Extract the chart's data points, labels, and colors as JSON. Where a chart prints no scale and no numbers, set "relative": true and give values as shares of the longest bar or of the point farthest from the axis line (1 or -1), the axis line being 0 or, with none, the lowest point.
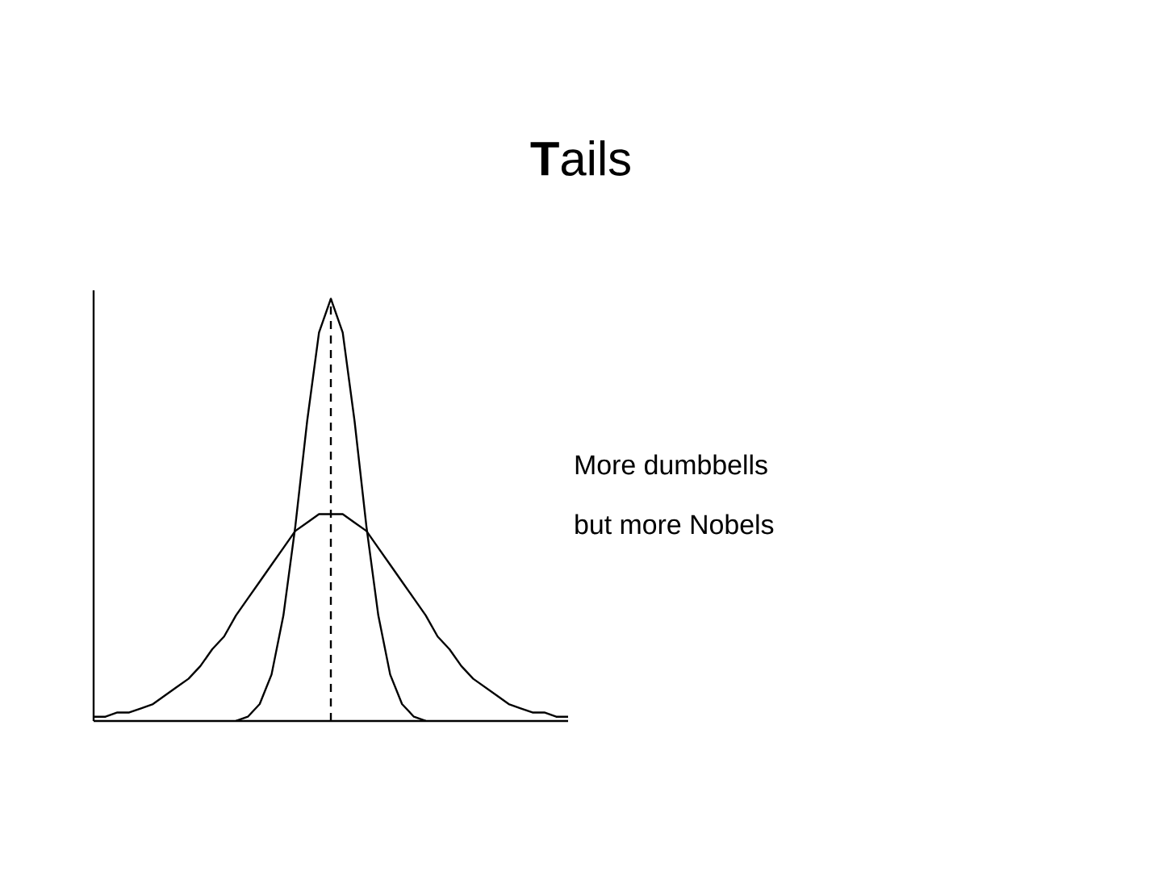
{
  "chart_data": {
    "type": "line",
    "title": "**T**ails",
    "relative": true,
    "categories": [
      null,
      null,
      null,
      null,
      null,
      null,
      null,
      null,
      null,
      null,
      null,
      null,
      null,
      null,
      null,
      null,
      null,
      null,
      null,
      null,
      null,
      null,
      null,
      null,
      null,
      null,
      null,
      null,
      null,
      null,
      null,
      null,
      null,
      null,
      null,
      null,
      null,
      null,
      null,
      null,
      null
    ],
    "series": [
      {
        "color": "#000000",
        "values": [
          0.01,
          0.01,
          0.02,
          0.02,
          0.03,
          0.04,
          0.06,
          0.08,
          0.1,
          0.13,
          0.17,
          0.2,
          0.25,
          0.29,
          0.33,
          0.37,
          0.41,
          0.45,
          0.47,
          0.49,
          0.49,
          0.49,
          0.47,
          0.45,
          0.41,
          0.37,
          0.33,
          0.29,
          0.25,
          0.2,
          0.17,
          0.13,
          0.1,
          0.08,
          0.06,
          0.04,
          0.03,
          0.02,
          0.02,
          0.01,
          0.01
        ]
      },
      {
        "color": "#000000",
        "values": [
          null,
          null,
          null,
          null,
          null,
          null,
          null,
          null,
          null,
          null,
          null,
          null,
          0.0,
          0.01,
          0.04,
          0.11,
          0.25,
          0.46,
          0.71,
          0.92,
          1,
          0.92,
          0.71,
          0.46,
          0.25,
          0.11,
          0.04,
          0.01,
          0.0,
          null,
          null,
          null,
          null,
          null,
          null,
          null,
          null,
          null,
          null,
          null,
          null
        ]
      }
    ],
    "annotations": [
      "More dumbbells",
      "but more Nobels"
    ]
  }
}
